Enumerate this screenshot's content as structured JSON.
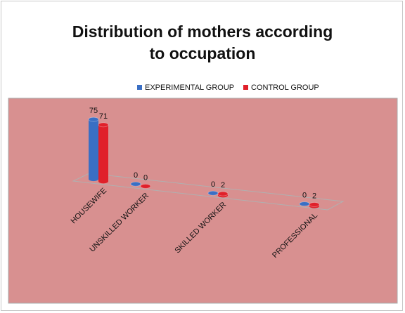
{
  "chart_data": {
    "type": "bar3d",
    "title": "Distribution of mothers according to occupation",
    "categories": [
      "HOUSEWIFE",
      "UNSKILLED WORKER",
      "SKILLED WORKER",
      "PROFESSIONAL"
    ],
    "series": [
      {
        "name": "EXPERIMENTAL GROUP",
        "color": "#3a6fc4",
        "values": [
          75,
          0,
          0,
          0
        ]
      },
      {
        "name": "CONTROL GROUP",
        "color": "#e0202a",
        "values": [
          71,
          0,
          2,
          2
        ]
      }
    ],
    "legend": "top",
    "plot_background": "#d89090"
  }
}
